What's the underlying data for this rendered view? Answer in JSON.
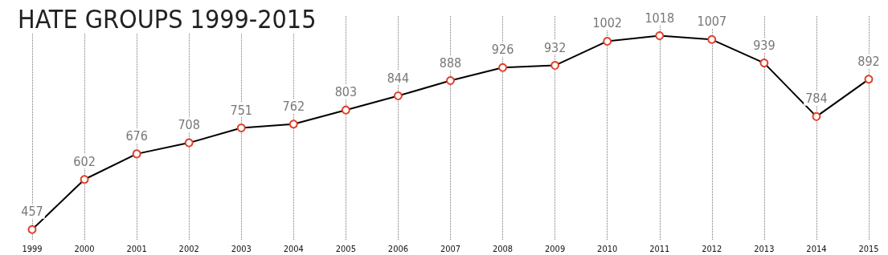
{
  "chart_data": {
    "type": "line",
    "title": "HATE GROUPS 1999-2015",
    "categories": [
      "1999",
      "2000",
      "2001",
      "2002",
      "2003",
      "2004",
      "2005",
      "2006",
      "2007",
      "2008",
      "2009",
      "2010",
      "2011",
      "2012",
      "2013",
      "2014",
      "2015"
    ],
    "series": [
      {
        "color": "#000000",
        "values": [
          457,
          602,
          676,
          708,
          751,
          762,
          803,
          844,
          888,
          926,
          932,
          1002,
          1018,
          1007,
          939,
          784,
          892
        ]
      }
    ],
    "marker": "circle",
    "line_style": "solid",
    "data_labels": true,
    "grid": "x",
    "tick_labels": "x",
    "ylim": [
      425,
      1075
    ]
  }
}
